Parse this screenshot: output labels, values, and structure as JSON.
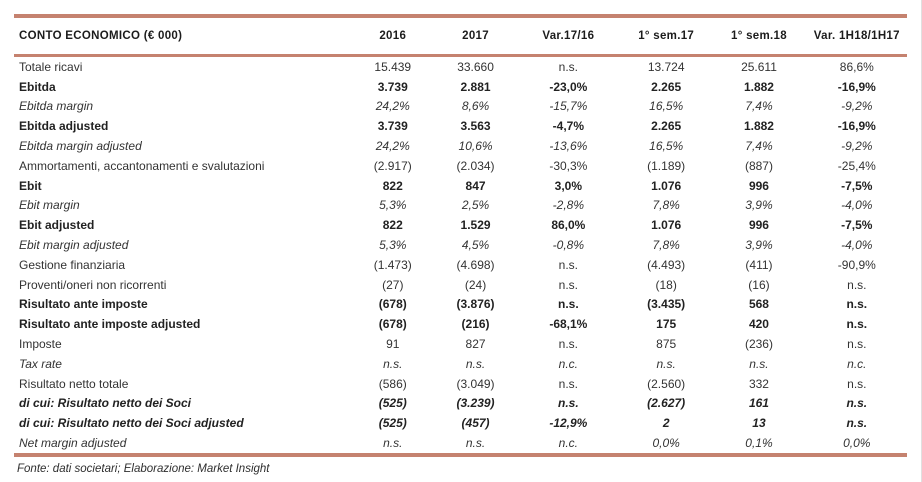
{
  "page": {
    "source_note": "Fonte: dati societari; Elaborazione: Market Insight"
  },
  "colors": {
    "rule_line": "#c5826f",
    "header_text": "#1c1c1c",
    "body_text": "#333333",
    "background": "#ffffff"
  },
  "table": {
    "title_column": "CONTO ECONOMICO (€ 000)",
    "columns": [
      "2016",
      "2017",
      "Var.17/16",
      "1° sem.17",
      "1° sem.18",
      "Var. 1H18/1H17"
    ],
    "rows": [
      {
        "label": "Totale ricavi",
        "style": "normal",
        "values": [
          "15.439",
          "33.660",
          "n.s.",
          "13.724",
          "25.611",
          "86,6%"
        ]
      },
      {
        "label": "Ebitda",
        "style": "bold",
        "values": [
          "3.739",
          "2.881",
          "-23,0%",
          "2.265",
          "1.882",
          "-16,9%"
        ]
      },
      {
        "label": "Ebitda margin",
        "style": "italic",
        "values": [
          "24,2%",
          "8,6%",
          "-15,7%",
          "16,5%",
          "7,4%",
          "-9,2%"
        ]
      },
      {
        "label": "Ebitda adjusted",
        "style": "bold",
        "values": [
          "3.739",
          "3.563",
          "-4,7%",
          "2.265",
          "1.882",
          "-16,9%"
        ]
      },
      {
        "label": "Ebitda margin adjusted",
        "style": "italic",
        "values": [
          "24,2%",
          "10,6%",
          "-13,6%",
          "16,5%",
          "7,4%",
          "-9,2%"
        ]
      },
      {
        "label": "Ammortamenti, accantonamenti e svalutazioni",
        "style": "normal",
        "values": [
          "(2.917)",
          "(2.034)",
          "-30,3%",
          "(1.189)",
          "(887)",
          "-25,4%"
        ]
      },
      {
        "label": "Ebit",
        "style": "bold",
        "values": [
          "822",
          "847",
          "3,0%",
          "1.076",
          "996",
          "-7,5%"
        ]
      },
      {
        "label": "Ebit margin",
        "style": "italic",
        "values": [
          "5,3%",
          "2,5%",
          "-2,8%",
          "7,8%",
          "3,9%",
          "-4,0%"
        ]
      },
      {
        "label": "Ebit adjusted",
        "style": "bold",
        "values": [
          "822",
          "1.529",
          "86,0%",
          "1.076",
          "996",
          "-7,5%"
        ]
      },
      {
        "label": "Ebit margin adjusted",
        "style": "italic",
        "values": [
          "5,3%",
          "4,5%",
          "-0,8%",
          "7,8%",
          "3,9%",
          "-4,0%"
        ]
      },
      {
        "label": "Gestione finanziaria",
        "style": "normal",
        "values": [
          "(1.473)",
          "(4.698)",
          "n.s.",
          "(4.493)",
          "(411)",
          "-90,9%"
        ]
      },
      {
        "label": "Proventi/oneri non ricorrenti",
        "style": "normal",
        "values": [
          "(27)",
          "(24)",
          "n.s.",
          "(18)",
          "(16)",
          "n.s."
        ]
      },
      {
        "label": "Risultato ante imposte",
        "style": "bold",
        "values": [
          "(678)",
          "(3.876)",
          "n.s.",
          "(3.435)",
          "568",
          "n.s."
        ]
      },
      {
        "label": "Risultato ante imposte adjusted",
        "style": "bold",
        "values": [
          "(678)",
          "(216)",
          "-68,1%",
          "175",
          "420",
          "n.s."
        ]
      },
      {
        "label": "Imposte",
        "style": "normal",
        "values": [
          "91",
          "827",
          "n.s.",
          "875",
          "(236)",
          "n.s."
        ]
      },
      {
        "label": "Tax rate",
        "style": "italic",
        "values": [
          "n.s.",
          "n.s.",
          "n.c.",
          "n.s.",
          "n.s.",
          "n.c."
        ]
      },
      {
        "label": "Risultato netto totale",
        "style": "normal",
        "values": [
          "(586)",
          "(3.049)",
          "n.s.",
          "(2.560)",
          "332",
          "n.s."
        ]
      },
      {
        "label": "di cui: Risultato netto dei Soci",
        "style": "bold-italic",
        "values": [
          "(525)",
          "(3.239)",
          "n.s.",
          "(2.627)",
          "161",
          "n.s."
        ]
      },
      {
        "label": "di cui: Risultato netto dei Soci adjusted",
        "style": "bold-italic",
        "values": [
          "(525)",
          "(457)",
          "-12,9%",
          "2",
          "13",
          "n.s."
        ]
      },
      {
        "label": "Net margin adjusted",
        "style": "italic",
        "values": [
          "n.s.",
          "n.s.",
          "n.c.",
          "0,0%",
          "0,1%",
          "0,0%"
        ]
      }
    ]
  }
}
